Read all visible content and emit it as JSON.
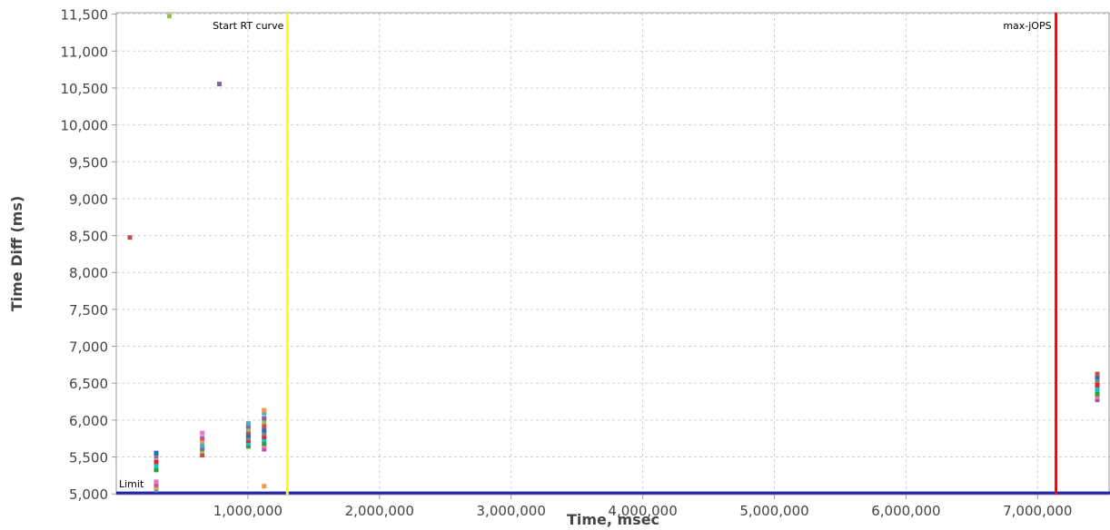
{
  "chart_data": {
    "type": "scatter",
    "title": "",
    "xlabel": "Time, msec",
    "ylabel": "Time Diff (ms)",
    "xlim": [
      0,
      7550000
    ],
    "ylim": [
      4990,
      11520
    ],
    "x_ticks": [
      1000000,
      2000000,
      3000000,
      4000000,
      5000000,
      6000000,
      7000000
    ],
    "x_tick_labels": [
      "1,000,000",
      "2,000,000",
      "3,000,000",
      "4,000,000",
      "5,000,000",
      "6,000,000",
      "7,000,000"
    ],
    "y_ticks": [
      5000,
      5500,
      6000,
      6500,
      7000,
      7500,
      8000,
      8500,
      9000,
      9500,
      10000,
      10500,
      11000,
      11500
    ],
    "y_tick_labels": [
      "5,000",
      "5,500",
      "6,000",
      "6,500",
      "7,000",
      "7,500",
      "8,000",
      "8,500",
      "9,000",
      "9,500",
      "10,000",
      "10,500",
      "11,000",
      "11,500"
    ],
    "grid": true,
    "markers": [
      {
        "label": "Start RT curve",
        "x": 1300000,
        "color": "#ffff00"
      },
      {
        "label": "max-jOPS",
        "x": 7140000,
        "color": "#ff0000"
      }
    ],
    "limit": {
      "label": "Limit",
      "y": 5000,
      "color": "#2222aa"
    },
    "point_colors": [
      "#c0504d",
      "#9bbb59",
      "#8064a2",
      "#4bacc6",
      "#f79646",
      "#b05a9e",
      "#e377c2",
      "#2ca02c",
      "#17becf",
      "#d62728",
      "#7f7f7f",
      "#1f6fb4"
    ],
    "points": [
      [
        100000,
        8480
      ],
      [
        400000,
        11480
      ],
      [
        780000,
        10560
      ],
      [
        300000,
        5060
      ],
      [
        300000,
        5090
      ],
      [
        300000,
        5130
      ],
      [
        300000,
        5170
      ],
      [
        300000,
        5330
      ],
      [
        300000,
        5380
      ],
      [
        300000,
        5440
      ],
      [
        300000,
        5510
      ],
      [
        300000,
        5560
      ],
      [
        650000,
        5530
      ],
      [
        650000,
        5580
      ],
      [
        650000,
        5620
      ],
      [
        650000,
        5660
      ],
      [
        650000,
        5720
      ],
      [
        650000,
        5760
      ],
      [
        650000,
        5830
      ],
      [
        1000000,
        5650
      ],
      [
        1000000,
        5690
      ],
      [
        1000000,
        5730
      ],
      [
        1000000,
        5760
      ],
      [
        1000000,
        5800
      ],
      [
        1000000,
        5840
      ],
      [
        1000000,
        5880
      ],
      [
        1000000,
        5920
      ],
      [
        1000000,
        5960
      ],
      [
        1120000,
        5110
      ],
      [
        1120000,
        5610
      ],
      [
        1120000,
        5650
      ],
      [
        1120000,
        5690
      ],
      [
        1120000,
        5740
      ],
      [
        1120000,
        5780
      ],
      [
        1120000,
        5820
      ],
      [
        1120000,
        5870
      ],
      [
        1120000,
        5920
      ],
      [
        1120000,
        5980
      ],
      [
        1120000,
        6030
      ],
      [
        1120000,
        6100
      ],
      [
        1120000,
        6140
      ],
      [
        7450000,
        6280
      ],
      [
        7450000,
        6320
      ],
      [
        7450000,
        6360
      ],
      [
        7450000,
        6420
      ],
      [
        7450000,
        6480
      ],
      [
        7450000,
        6540
      ],
      [
        7450000,
        6590
      ],
      [
        7450000,
        6630
      ]
    ]
  }
}
